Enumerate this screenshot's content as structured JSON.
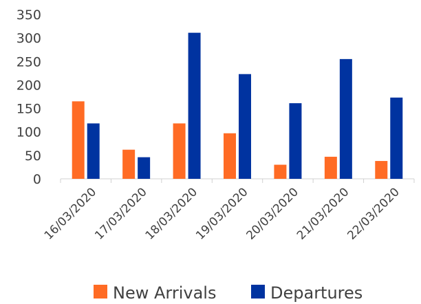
{
  "chart_data": {
    "type": "bar",
    "categories": [
      "16/03/2020",
      "17/03/2020",
      "18/03/2020",
      "19/03/2020",
      "20/03/2020",
      "21/03/2020",
      "22/03/2020"
    ],
    "series": [
      {
        "name": "New Arrivals",
        "color": "#FF6B24",
        "values": [
          165,
          62,
          118,
          97,
          30,
          47,
          38
        ]
      },
      {
        "name": "Departures",
        "color": "#0033A0",
        "values": [
          118,
          46,
          311,
          223,
          161,
          255,
          173
        ]
      }
    ],
    "yticks": [
      "0",
      "50",
      "100",
      "150",
      "200",
      "250",
      "300",
      "350"
    ],
    "ylim": [
      0,
      350
    ],
    "grid": false,
    "legend_position": "bottom"
  }
}
